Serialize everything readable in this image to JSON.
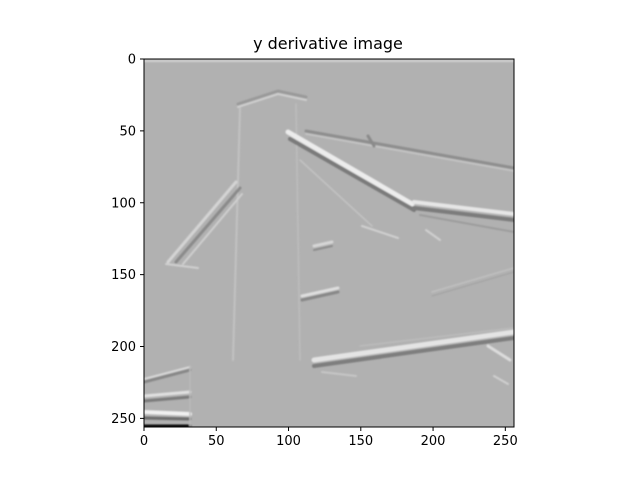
{
  "title": "y derivative image",
  "axes": {
    "x_ticks": [
      "0",
      "50",
      "100",
      "150",
      "200",
      "250"
    ],
    "y_ticks": [
      "0",
      "50",
      "100",
      "150",
      "200",
      "250"
    ],
    "x_tick_values": [
      0,
      50,
      100,
      150,
      200,
      250
    ],
    "y_tick_values": [
      0,
      50,
      100,
      150,
      200,
      250
    ],
    "xlim": [
      0,
      256
    ],
    "ylim": [
      0,
      256
    ]
  },
  "colors": {
    "background": "#b1b1b1",
    "bright_edge": "#ececec",
    "dark_edge": "#6e6e6e",
    "frame": "#000000"
  }
}
